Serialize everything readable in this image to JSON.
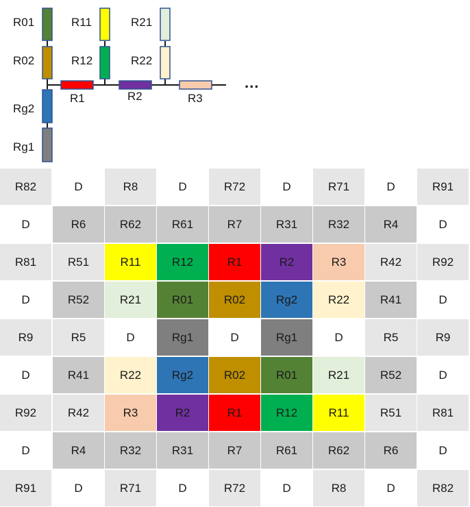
{
  "colors": {
    "R01": "#548235",
    "R02": "#bf8f00",
    "R11": "#ffff00",
    "R12": "#00b050",
    "R21": "#e2efda",
    "R22": "#fff2cc",
    "R1": "#ff0000",
    "R2": "#7030a0",
    "R3": "#f8cbad",
    "Rg2": "#2e75b6",
    "Rg1": "#7f7f7f",
    "light": "#e7e6e6",
    "mid": "#c9c9c9",
    "white": "#ffffff"
  },
  "diagram": {
    "labels": {
      "r01": "R01",
      "r02": "R02",
      "r11": "R11",
      "r12": "R12",
      "r21": "R21",
      "r22": "R22",
      "r1": "R1",
      "r2": "R2",
      "r3": "R3",
      "rg2": "Rg2",
      "rg1": "Rg1",
      "ellipsis": "..."
    }
  },
  "grid": {
    "rows": [
      [
        {
          "t": "R82",
          "bg": "light"
        },
        {
          "t": "D",
          "bg": "white"
        },
        {
          "t": "R8",
          "bg": "light"
        },
        {
          "t": "D",
          "bg": "white"
        },
        {
          "t": "R72",
          "bg": "light"
        },
        {
          "t": "D",
          "bg": "white"
        },
        {
          "t": "R71",
          "bg": "light"
        },
        {
          "t": "D",
          "bg": "white"
        },
        {
          "t": "R91",
          "bg": "light"
        }
      ],
      [
        {
          "t": "D",
          "bg": "white"
        },
        {
          "t": "R6",
          "bg": "mid"
        },
        {
          "t": "R62",
          "bg": "mid"
        },
        {
          "t": "R61",
          "bg": "mid"
        },
        {
          "t": "R7",
          "bg": "mid"
        },
        {
          "t": "R31",
          "bg": "mid"
        },
        {
          "t": "R32",
          "bg": "mid"
        },
        {
          "t": "R4",
          "bg": "mid"
        },
        {
          "t": "D",
          "bg": "white"
        }
      ],
      [
        {
          "t": "R81",
          "bg": "light"
        },
        {
          "t": "R51",
          "bg": "light"
        },
        {
          "t": "R11",
          "bg": "R11"
        },
        {
          "t": "R12",
          "bg": "R12"
        },
        {
          "t": "R1",
          "bg": "R1"
        },
        {
          "t": "R2",
          "bg": "R2"
        },
        {
          "t": "R3",
          "bg": "R3"
        },
        {
          "t": "R42",
          "bg": "light"
        },
        {
          "t": "R92",
          "bg": "light"
        }
      ],
      [
        {
          "t": "D",
          "bg": "white"
        },
        {
          "t": "R52",
          "bg": "mid"
        },
        {
          "t": "R21",
          "bg": "R21"
        },
        {
          "t": "R01",
          "bg": "R01"
        },
        {
          "t": "R02",
          "bg": "R02"
        },
        {
          "t": "Rg2",
          "bg": "Rg2"
        },
        {
          "t": "R22",
          "bg": "R22"
        },
        {
          "t": "R41",
          "bg": "mid"
        },
        {
          "t": "D",
          "bg": "white"
        }
      ],
      [
        {
          "t": "R9",
          "bg": "light"
        },
        {
          "t": "R5",
          "bg": "light"
        },
        {
          "t": "D",
          "bg": "white"
        },
        {
          "t": "Rg1",
          "bg": "Rg1"
        },
        {
          "t": "D",
          "bg": "white"
        },
        {
          "t": "Rg1",
          "bg": "Rg1"
        },
        {
          "t": "D",
          "bg": "white"
        },
        {
          "t": "R5",
          "bg": "light"
        },
        {
          "t": "R9",
          "bg": "light"
        }
      ],
      [
        {
          "t": "D",
          "bg": "white"
        },
        {
          "t": "R41",
          "bg": "mid"
        },
        {
          "t": "R22",
          "bg": "R22"
        },
        {
          "t": "Rg2",
          "bg": "Rg2"
        },
        {
          "t": "R02",
          "bg": "R02"
        },
        {
          "t": "R01",
          "bg": "R01"
        },
        {
          "t": "R21",
          "bg": "R21"
        },
        {
          "t": "R52",
          "bg": "mid"
        },
        {
          "t": "D",
          "bg": "white"
        }
      ],
      [
        {
          "t": "R92",
          "bg": "light"
        },
        {
          "t": "R42",
          "bg": "light"
        },
        {
          "t": "R3",
          "bg": "R3"
        },
        {
          "t": "R2",
          "bg": "R2"
        },
        {
          "t": "R1",
          "bg": "R1"
        },
        {
          "t": "R12",
          "bg": "R12"
        },
        {
          "t": "R11",
          "bg": "R11"
        },
        {
          "t": "R51",
          "bg": "light"
        },
        {
          "t": "R81",
          "bg": "light"
        }
      ],
      [
        {
          "t": "D",
          "bg": "white"
        },
        {
          "t": "R4",
          "bg": "mid"
        },
        {
          "t": "R32",
          "bg": "mid"
        },
        {
          "t": "R31",
          "bg": "mid"
        },
        {
          "t": "R7",
          "bg": "mid"
        },
        {
          "t": "R61",
          "bg": "mid"
        },
        {
          "t": "R62",
          "bg": "mid"
        },
        {
          "t": "R6",
          "bg": "mid"
        },
        {
          "t": "D",
          "bg": "white"
        }
      ],
      [
        {
          "t": "R91",
          "bg": "light"
        },
        {
          "t": "D",
          "bg": "white"
        },
        {
          "t": "R71",
          "bg": "light"
        },
        {
          "t": "D",
          "bg": "white"
        },
        {
          "t": "R72",
          "bg": "light"
        },
        {
          "t": "D",
          "bg": "white"
        },
        {
          "t": "R8",
          "bg": "light"
        },
        {
          "t": "D",
          "bg": "white"
        },
        {
          "t": "R82",
          "bg": "light"
        }
      ]
    ]
  }
}
